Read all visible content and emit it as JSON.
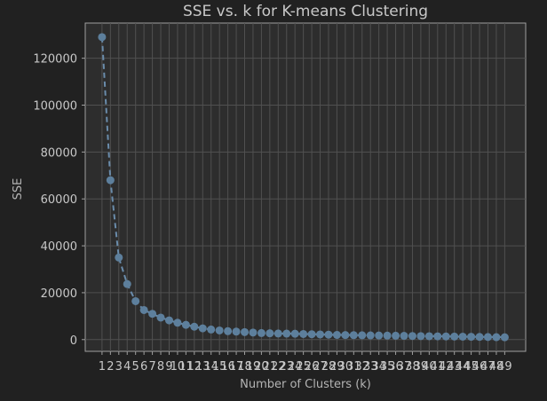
{
  "chart_data": {
    "type": "line",
    "title": "SSE vs. k for K-means Clustering",
    "xlabel": "Number of Clusters (k)",
    "ylabel": "SSE",
    "x": [
      1,
      2,
      3,
      4,
      5,
      6,
      7,
      8,
      9,
      10,
      11,
      12,
      13,
      14,
      15,
      16,
      17,
      18,
      19,
      20,
      21,
      22,
      23,
      24,
      25,
      26,
      27,
      28,
      29,
      30,
      31,
      32,
      33,
      34,
      35,
      36,
      37,
      38,
      39,
      40,
      41,
      42,
      43,
      44,
      45,
      46,
      47,
      48,
      49
    ],
    "y": [
      129000,
      68000,
      35000,
      23700,
      16400,
      12600,
      11000,
      9400,
      8200,
      7200,
      6300,
      5500,
      4800,
      4300,
      3900,
      3600,
      3400,
      3200,
      3000,
      2800,
      2700,
      2600,
      2550,
      2500,
      2400,
      2300,
      2200,
      2100,
      2000,
      1950,
      1900,
      1850,
      1800,
      1750,
      1700,
      1650,
      1600,
      1550,
      1500,
      1450,
      1400,
      1350,
      1300,
      1250,
      1200,
      1150,
      1100,
      1050,
      1000
    ],
    "xlim": [
      -1,
      51.5
    ],
    "ylim": [
      -5000,
      135000
    ],
    "yticks": [
      0,
      20000,
      40000,
      60000,
      80000,
      100000,
      120000
    ],
    "xtick_labels": [
      "1",
      "2",
      "3",
      "4",
      "5",
      "6",
      "7",
      "8",
      "9",
      "10",
      "11",
      "12",
      "13",
      "14",
      "15",
      "16",
      "17",
      "18",
      "19",
      "20",
      "21",
      "22",
      "23",
      "24",
      "25",
      "26",
      "27",
      "28",
      "29",
      "30",
      "31",
      "32",
      "33",
      "34",
      "35",
      "36",
      "37",
      "38",
      "39",
      "40",
      "41",
      "42",
      "43",
      "44",
      "45",
      "46",
      "47",
      "48",
      "49"
    ],
    "grid": true,
    "colors": {
      "background": "#212121",
      "plot_area": "#2d2d2d",
      "grid": "#505050",
      "axis": "#a0a0a0",
      "line": "#6a8cab",
      "marker": "#5d7f9c"
    },
    "line_style": "dashed",
    "marker": "circle"
  }
}
